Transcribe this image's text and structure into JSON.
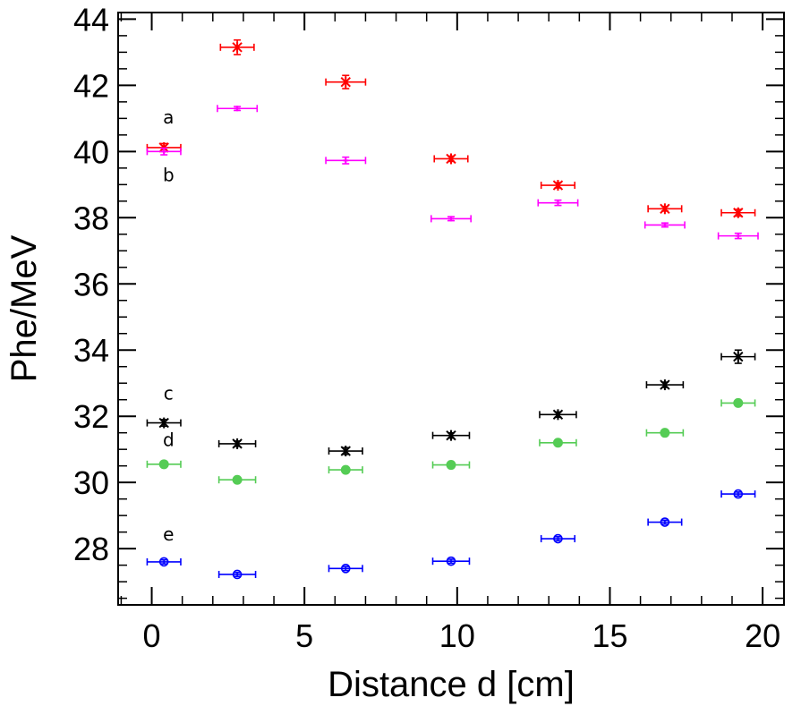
{
  "chart_data": {
    "type": "scatter",
    "xlabel": "Distance d [cm]",
    "ylabel": "Phe/MeV",
    "xlim": [
      -1.1,
      20.7
    ],
    "ylim": [
      26.3,
      44.2
    ],
    "x_ticks": [
      0,
      5,
      10,
      15,
      20
    ],
    "y_ticks": [
      28,
      30,
      32,
      34,
      36,
      38,
      40,
      42,
      44
    ],
    "grid": false,
    "legend": "none",
    "series": [
      {
        "label": "a",
        "color": "#ff0000",
        "marker": "star",
        "points": [
          {
            "x": 0.4,
            "y": 40.12,
            "xerr": 0.55,
            "yerr": 0.12
          },
          {
            "x": 2.8,
            "y": 43.15,
            "xerr": 0.55,
            "yerr": 0.22
          },
          {
            "x": 6.35,
            "y": 42.1,
            "xerr": 0.65,
            "yerr": 0.2
          },
          {
            "x": 9.8,
            "y": 39.78,
            "xerr": 0.55,
            "yerr": 0.08
          },
          {
            "x": 13.3,
            "y": 38.98,
            "xerr": 0.55,
            "yerr": 0.08
          },
          {
            "x": 16.8,
            "y": 38.27,
            "xerr": 0.55,
            "yerr": 0.07
          },
          {
            "x": 19.2,
            "y": 38.15,
            "xerr": 0.55,
            "yerr": 0.1
          }
        ]
      },
      {
        "label": "b",
        "color": "#ff00ff",
        "marker": "plus",
        "points": [
          {
            "x": 0.4,
            "y": 40.0,
            "xerr": 0.55,
            "yerr": 0.1
          },
          {
            "x": 2.8,
            "y": 41.3,
            "xerr": 0.65,
            "yerr": 0.06
          },
          {
            "x": 6.35,
            "y": 39.73,
            "xerr": 0.65,
            "yerr": 0.1
          },
          {
            "x": 9.8,
            "y": 37.97,
            "xerr": 0.65,
            "yerr": 0.06
          },
          {
            "x": 13.3,
            "y": 38.45,
            "xerr": 0.65,
            "yerr": 0.08
          },
          {
            "x": 16.8,
            "y": 37.78,
            "xerr": 0.65,
            "yerr": 0.06
          },
          {
            "x": 19.2,
            "y": 37.45,
            "xerr": 0.65,
            "yerr": 0.08
          }
        ]
      },
      {
        "label": "c",
        "color": "#000000",
        "marker": "star",
        "points": [
          {
            "x": 0.4,
            "y": 31.8,
            "xerr": 0.55,
            "yerr": 0.1
          },
          {
            "x": 2.8,
            "y": 31.17,
            "xerr": 0.6,
            "yerr": 0.08
          },
          {
            "x": 6.35,
            "y": 30.95,
            "xerr": 0.55,
            "yerr": 0.1
          },
          {
            "x": 9.8,
            "y": 31.42,
            "xerr": 0.6,
            "yerr": 0.08
          },
          {
            "x": 13.3,
            "y": 32.05,
            "xerr": 0.6,
            "yerr": 0.08
          },
          {
            "x": 16.8,
            "y": 32.95,
            "xerr": 0.6,
            "yerr": 0.08
          },
          {
            "x": 19.2,
            "y": 33.8,
            "xerr": 0.55,
            "yerr": 0.2
          }
        ]
      },
      {
        "label": "d",
        "color": "#55cc55",
        "marker": "filled-circle",
        "points": [
          {
            "x": 0.4,
            "y": 30.55,
            "xerr": 0.55,
            "yerr": 0.06
          },
          {
            "x": 2.8,
            "y": 30.08,
            "xerr": 0.6,
            "yerr": 0.06
          },
          {
            "x": 6.35,
            "y": 30.38,
            "xerr": 0.55,
            "yerr": 0.06
          },
          {
            "x": 9.8,
            "y": 30.53,
            "xerr": 0.6,
            "yerr": 0.06
          },
          {
            "x": 13.3,
            "y": 31.2,
            "xerr": 0.6,
            "yerr": 0.06
          },
          {
            "x": 16.8,
            "y": 31.5,
            "xerr": 0.6,
            "yerr": 0.06
          },
          {
            "x": 19.2,
            "y": 32.4,
            "xerr": 0.55,
            "yerr": 0.06
          }
        ]
      },
      {
        "label": "e",
        "color": "#0000ff",
        "marker": "open-circle",
        "points": [
          {
            "x": 0.4,
            "y": 27.6,
            "xerr": 0.55,
            "yerr": 0.06
          },
          {
            "x": 2.8,
            "y": 27.22,
            "xerr": 0.6,
            "yerr": 0.06
          },
          {
            "x": 6.35,
            "y": 27.4,
            "xerr": 0.55,
            "yerr": 0.06
          },
          {
            "x": 9.8,
            "y": 27.62,
            "xerr": 0.6,
            "yerr": 0.06
          },
          {
            "x": 13.3,
            "y": 28.3,
            "xerr": 0.55,
            "yerr": 0.06
          },
          {
            "x": 16.8,
            "y": 28.8,
            "xerr": 0.55,
            "yerr": 0.06
          },
          {
            "x": 19.2,
            "y": 29.65,
            "xerr": 0.55,
            "yerr": 0.06
          }
        ]
      }
    ],
    "annotations": [
      {
        "text": "a",
        "x": 0.55,
        "y": 40.85
      },
      {
        "text": "b",
        "x": 0.55,
        "y": 39.1
      },
      {
        "text": "c",
        "x": 0.55,
        "y": 32.5
      },
      {
        "text": "d",
        "x": 0.55,
        "y": 31.1
      },
      {
        "text": "e",
        "x": 0.55,
        "y": 28.25
      }
    ]
  }
}
